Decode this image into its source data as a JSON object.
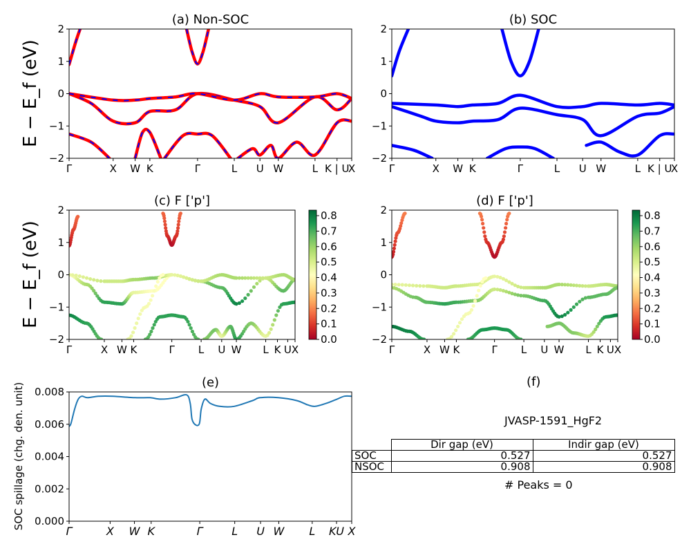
{
  "chart_data": [
    {
      "type": "line",
      "title": "(a) Non-SOC",
      "ylabel": "E − E_f (eV)",
      "ylim": [
        -2,
        2
      ],
      "yticks": [
        "2",
        "1",
        "0",
        "−1",
        "−2"
      ],
      "kpath": [
        0,
        1.2,
        1.8,
        2.2,
        3.5,
        4.5,
        5.2,
        5.7,
        6.7,
        7.3,
        7.7
      ],
      "xticks": [
        "Γ",
        "X",
        "W",
        "K",
        "Γ",
        "L",
        "U",
        "W",
        "L",
        "K | U",
        "X"
      ],
      "series": [
        {
          "color": "#ff0000",
          "style": "solid",
          "x": [
            0,
            0.18,
            0.3
          ],
          "y": [
            0.9,
            1.6,
            2.0
          ]
        },
        {
          "color": "#ff0000",
          "style": "solid",
          "x": [
            3.2,
            3.35,
            3.5,
            3.65,
            3.8
          ],
          "y": [
            2.0,
            1.3,
            0.92,
            1.3,
            2.0
          ]
        },
        {
          "color": "#ff0000",
          "style": "solid",
          "x": [
            0,
            0.6,
            1.2,
            1.8,
            2.2,
            2.9,
            3.5,
            4.5,
            5.2,
            5.7,
            6.7,
            7.3,
            7.7
          ],
          "y": [
            0,
            -0.3,
            -0.85,
            -0.9,
            -0.55,
            -0.5,
            0,
            -0.2,
            -0.4,
            -0.9,
            -0.1,
            -0.5,
            -0.15
          ]
        },
        {
          "color": "#ff0000",
          "style": "solid",
          "x": [
            0,
            1.2,
            1.8,
            2.2,
            2.9,
            3.5,
            4.5,
            5.2,
            5.7,
            6.7,
            7.3,
            7.7
          ],
          "y": [
            0,
            -0.2,
            -0.2,
            -0.15,
            -0.1,
            0,
            -0.2,
            0,
            -0.1,
            -0.1,
            0,
            -0.15
          ]
        },
        {
          "color": "#ff0000",
          "style": "solid",
          "x": [
            0,
            0.6,
            1.1
          ],
          "y": [
            -1.25,
            -1.5,
            -2.0
          ]
        },
        {
          "color": "#ff0000",
          "style": "solid",
          "x": [
            1.8,
            2.0,
            2.2,
            2.5
          ],
          "y": [
            -2.0,
            -1.2,
            -1.2,
            -2.0
          ]
        },
        {
          "color": "#ff0000",
          "style": "solid",
          "x": [
            2.6,
            3.1,
            3.5,
            3.9,
            4.4
          ],
          "y": [
            -2.0,
            -1.3,
            -1.25,
            -1.3,
            -2.0
          ]
        },
        {
          "color": "#ff0000",
          "style": "solid",
          "x": [
            4.6,
            5.0,
            5.2,
            5.5,
            5.7,
            6.2,
            6.7,
            7.3,
            7.7
          ],
          "y": [
            -2.0,
            -1.7,
            -1.9,
            -1.6,
            -2.0,
            -1.5,
            -1.9,
            -0.9,
            -0.85
          ]
        }
      ],
      "overlay": {
        "color": "#0000ff",
        "style": "dashed",
        "note": "same bands as red"
      }
    },
    {
      "type": "line",
      "title": "(b) SOC",
      "ylim": [
        -2,
        2
      ],
      "yticks": [
        "2",
        "1",
        "0",
        "−1",
        "−2"
      ],
      "xticks": [
        "Γ",
        "X",
        "W",
        "K",
        "Γ",
        "L",
        "U",
        "W",
        "L",
        "K | U",
        "X"
      ],
      "series": [
        {
          "color": "#0000ff",
          "x": [
            0,
            0.2,
            0.45
          ],
          "y": [
            0.55,
            1.3,
            2.0
          ]
        },
        {
          "color": "#0000ff",
          "x": [
            3.0,
            3.25,
            3.5,
            3.75,
            4.0
          ],
          "y": [
            2.0,
            1.0,
            0.55,
            1.0,
            2.0
          ]
        },
        {
          "color": "#0000ff",
          "x": [
            0,
            1.2,
            1.8,
            2.2,
            2.9,
            3.5,
            4.5,
            5.2,
            5.7,
            6.7,
            7.3,
            7.7
          ],
          "y": [
            -0.3,
            -0.35,
            -0.4,
            -0.35,
            -0.3,
            -0.05,
            -0.4,
            -0.4,
            -0.3,
            -0.35,
            -0.3,
            -0.35
          ]
        },
        {
          "color": "#0000ff",
          "x": [
            0,
            0.8,
            1.2,
            1.8,
            2.2,
            2.9,
            3.5,
            4.5,
            5.2,
            5.7,
            6.7,
            7.3,
            7.7
          ],
          "y": [
            -0.4,
            -0.7,
            -0.85,
            -0.9,
            -0.85,
            -0.8,
            -0.45,
            -0.65,
            -0.8,
            -1.3,
            -0.7,
            -0.6,
            -0.4
          ]
        },
        {
          "color": "#0000ff",
          "x": [
            0,
            0.6,
            1.1
          ],
          "y": [
            -1.6,
            -1.75,
            -2.0
          ]
        },
        {
          "color": "#0000ff",
          "x": [
            2.6,
            3.1,
            3.5,
            3.9,
            4.4
          ],
          "y": [
            -2.0,
            -1.7,
            -1.65,
            -1.7,
            -2.0
          ]
        },
        {
          "color": "#0000ff",
          "x": [
            5.3,
            5.7,
            6.2,
            6.7,
            7.3,
            7.7
          ],
          "y": [
            -1.6,
            -1.5,
            -1.8,
            -1.9,
            -1.3,
            -1.25
          ]
        }
      ]
    },
    {
      "type": "scatter",
      "title": "(c)  F ['p']",
      "ylabel": "E − E_f (eV)",
      "ylim": [
        -2,
        2
      ],
      "yticks": [
        "2",
        "1",
        "0",
        "−1",
        "−2"
      ],
      "xticks": [
        "Γ",
        "X",
        "W",
        "K",
        "Γ",
        "L",
        "U",
        "W",
        "L",
        "K",
        "U",
        "X"
      ],
      "colorbar": {
        "colormap": "RdYlGn",
        "range": [
          0,
          0.8
        ],
        "ticks": [
          "0.8",
          "0.7",
          "0.6",
          "0.5",
          "0.4",
          "0.3",
          "0.2",
          "0.1",
          "0.0"
        ]
      },
      "bands": [
        {
          "x": [
            0,
            0.15,
            0.3
          ],
          "y": [
            0.9,
            1.4,
            1.8
          ],
          "w": [
            0.05,
            0.1,
            0.15
          ]
        },
        {
          "x": [
            3.2,
            3.35,
            3.5,
            3.65,
            3.8
          ],
          "y": [
            1.9,
            1.2,
            0.92,
            1.2,
            1.9
          ],
          "w": [
            0.15,
            0.08,
            0.02,
            0.08,
            0.15
          ]
        },
        {
          "x": [
            0,
            0.6,
            1.2,
            1.8,
            2.2,
            2.9,
            3.5,
            4.5,
            5.2,
            5.7,
            6.7,
            7.3,
            7.7
          ],
          "y": [
            0,
            -0.3,
            -0.85,
            -0.9,
            -0.55,
            -0.5,
            0,
            -0.2,
            -0.4,
            -0.9,
            -0.1,
            -0.5,
            -0.15
          ],
          "w": [
            0.4,
            0.55,
            0.7,
            0.7,
            0.45,
            0.4,
            0.4,
            0.6,
            0.65,
            0.75,
            0.5,
            0.65,
            0.6
          ]
        },
        {
          "x": [
            0,
            1.2,
            1.8,
            2.2,
            2.9,
            3.5,
            4.5,
            5.2,
            5.7,
            6.7,
            7.3,
            7.7
          ],
          "y": [
            0,
            -0.2,
            -0.2,
            -0.15,
            -0.1,
            0,
            -0.2,
            0,
            -0.1,
            -0.1,
            0,
            -0.15
          ],
          "w": [
            0.45,
            0.5,
            0.5,
            0.55,
            0.6,
            0.45,
            0.5,
            0.55,
            0.55,
            0.5,
            0.55,
            0.55
          ]
        },
        {
          "x": [
            0,
            0.6,
            1.1
          ],
          "y": [
            -1.25,
            -1.5,
            -2.0
          ],
          "w": [
            0.75,
            0.7,
            0.65
          ]
        },
        {
          "x": [
            2.0,
            2.6,
            3.2
          ],
          "y": [
            -2.0,
            -1.0,
            0
          ],
          "w": [
            0.45,
            0.42,
            0.4
          ]
        },
        {
          "x": [
            2.6,
            3.1,
            3.5,
            3.9,
            4.4
          ],
          "y": [
            -2.0,
            -1.3,
            -1.25,
            -1.3,
            -2.0
          ],
          "w": [
            0.65,
            0.7,
            0.7,
            0.7,
            0.65
          ]
        },
        {
          "x": [
            4.6,
            5.0,
            5.2,
            5.5,
            5.7,
            6.2,
            6.7,
            7.3,
            7.7
          ],
          "y": [
            -2.0,
            -1.7,
            -1.9,
            -1.6,
            -2.0,
            -1.5,
            -1.9,
            -0.9,
            -0.85
          ],
          "w": [
            0.6,
            0.62,
            0.45,
            0.65,
            0.7,
            0.6,
            0.45,
            0.7,
            0.72
          ]
        }
      ]
    },
    {
      "type": "scatter",
      "title": "(d) F ['p']",
      "ylim": [
        -2,
        2
      ],
      "yticks": [
        "2",
        "1",
        "0",
        "−1",
        "−2"
      ],
      "xticks": [
        "Γ",
        "X",
        "W",
        "K",
        "Γ",
        "L",
        "U",
        "W",
        "L",
        "K",
        "U",
        "X"
      ],
      "colorbar": {
        "colormap": "RdYlGn",
        "range": [
          0,
          0.8
        ],
        "ticks": [
          "0.8",
          "0.7",
          "0.6",
          "0.5",
          "0.4",
          "0.3",
          "0.2",
          "0.1",
          "0.0"
        ]
      },
      "bands": [
        {
          "x": [
            0,
            0.2,
            0.45
          ],
          "y": [
            0.55,
            1.3,
            1.9
          ],
          "w": [
            0.05,
            0.12,
            0.18
          ]
        },
        {
          "x": [
            3.0,
            3.25,
            3.5,
            3.75,
            4.0
          ],
          "y": [
            1.9,
            1.0,
            0.55,
            1.0,
            1.9
          ],
          "w": [
            0.18,
            0.08,
            0.02,
            0.08,
            0.18
          ]
        },
        {
          "x": [
            0,
            1.2,
            1.8,
            2.2,
            2.9,
            3.5,
            4.5,
            5.2,
            5.7,
            6.7,
            7.3,
            7.7
          ],
          "y": [
            -0.3,
            -0.35,
            -0.4,
            -0.35,
            -0.3,
            -0.05,
            -0.4,
            -0.4,
            -0.3,
            -0.35,
            -0.3,
            -0.35
          ],
          "w": [
            0.45,
            0.48,
            0.5,
            0.5,
            0.48,
            0.45,
            0.5,
            0.55,
            0.55,
            0.5,
            0.52,
            0.55
          ]
        },
        {
          "x": [
            0,
            0.8,
            1.2,
            1.8,
            2.2,
            2.9,
            3.5,
            4.5,
            5.2,
            5.7,
            6.7,
            7.3,
            7.7
          ],
          "y": [
            -0.4,
            -0.7,
            -0.85,
            -0.9,
            -0.85,
            -0.8,
            -0.45,
            -0.65,
            -0.8,
            -1.3,
            -0.7,
            -0.6,
            -0.4
          ],
          "w": [
            0.55,
            0.62,
            0.65,
            0.7,
            0.68,
            0.6,
            0.5,
            0.62,
            0.68,
            0.75,
            0.65,
            0.65,
            0.62
          ]
        },
        {
          "x": [
            0,
            0.6,
            1.1
          ],
          "y": [
            -1.6,
            -1.75,
            -2.0
          ],
          "w": [
            0.78,
            0.75,
            0.7
          ]
        },
        {
          "x": [
            1.9,
            2.6,
            3.2
          ],
          "y": [
            -2.0,
            -1.2,
            -0.1
          ],
          "w": [
            0.45,
            0.42,
            0.4
          ]
        },
        {
          "x": [
            2.6,
            3.1,
            3.5,
            3.9,
            4.4
          ],
          "y": [
            -2.0,
            -1.7,
            -1.65,
            -1.7,
            -2.0
          ],
          "w": [
            0.68,
            0.72,
            0.72,
            0.72,
            0.68
          ]
        },
        {
          "x": [
            5.3,
            5.7,
            6.2,
            6.7,
            7.3,
            7.7
          ],
          "y": [
            -1.6,
            -1.5,
            -1.8,
            -1.9,
            -1.3,
            -1.25
          ],
          "w": [
            0.6,
            0.62,
            0.6,
            0.5,
            0.72,
            0.75
          ]
        }
      ]
    },
    {
      "type": "line",
      "title": "(e)",
      "ylabel": "SOC spillage (chg. den. unit)",
      "ylim": [
        0,
        0.009
      ],
      "yticks": [
        "0.008",
        "0.006",
        "0.004",
        "0.002",
        "0.000"
      ],
      "xticks": [
        "Γ",
        "X",
        "W",
        "K",
        "Γ",
        "L",
        "U",
        "W",
        "L",
        "KU",
        "X"
      ],
      "series": [
        {
          "color": "#1f77b4",
          "x": [
            0,
            0.05,
            0.15,
            0.25,
            0.35,
            0.5,
            0.8,
            1.2,
            1.8,
            2.2,
            2.5,
            2.9,
            3.2,
            3.3,
            3.35,
            3.45,
            3.55,
            3.6,
            3.7,
            3.85,
            4.1,
            4.5,
            5.0,
            5.2,
            5.7,
            6.2,
            6.5,
            6.7,
            7.0,
            7.3,
            7.5,
            7.7
          ],
          "y": [
            0.0066,
            0.0068,
            0.0078,
            0.0085,
            0.0087,
            0.0086,
            0.0087,
            0.0087,
            0.0086,
            0.0086,
            0.0085,
            0.0086,
            0.0088,
            0.0082,
            0.0071,
            0.0067,
            0.0068,
            0.0078,
            0.0085,
            0.0082,
            0.008,
            0.008,
            0.0084,
            0.0086,
            0.0086,
            0.0084,
            0.0081,
            0.008,
            0.0082,
            0.0085,
            0.0087,
            0.0087
          ]
        }
      ]
    }
  ],
  "panel_f": {
    "title": "(f)",
    "material": "JVASP-1591_HgF2",
    "table": {
      "columns": [
        "Dir gap (eV)",
        "Indir gap (eV)"
      ],
      "rows": [
        {
          "label": "SOC",
          "dir": "0.527",
          "indir": "0.527"
        },
        {
          "label": "NSOC",
          "dir": "0.908",
          "indir": "0.908"
        }
      ]
    },
    "peaks": "# Peaks = 0"
  },
  "colors": {
    "red": "#ff0000",
    "blue": "#0000ff",
    "spillage": "#1f77b4"
  }
}
